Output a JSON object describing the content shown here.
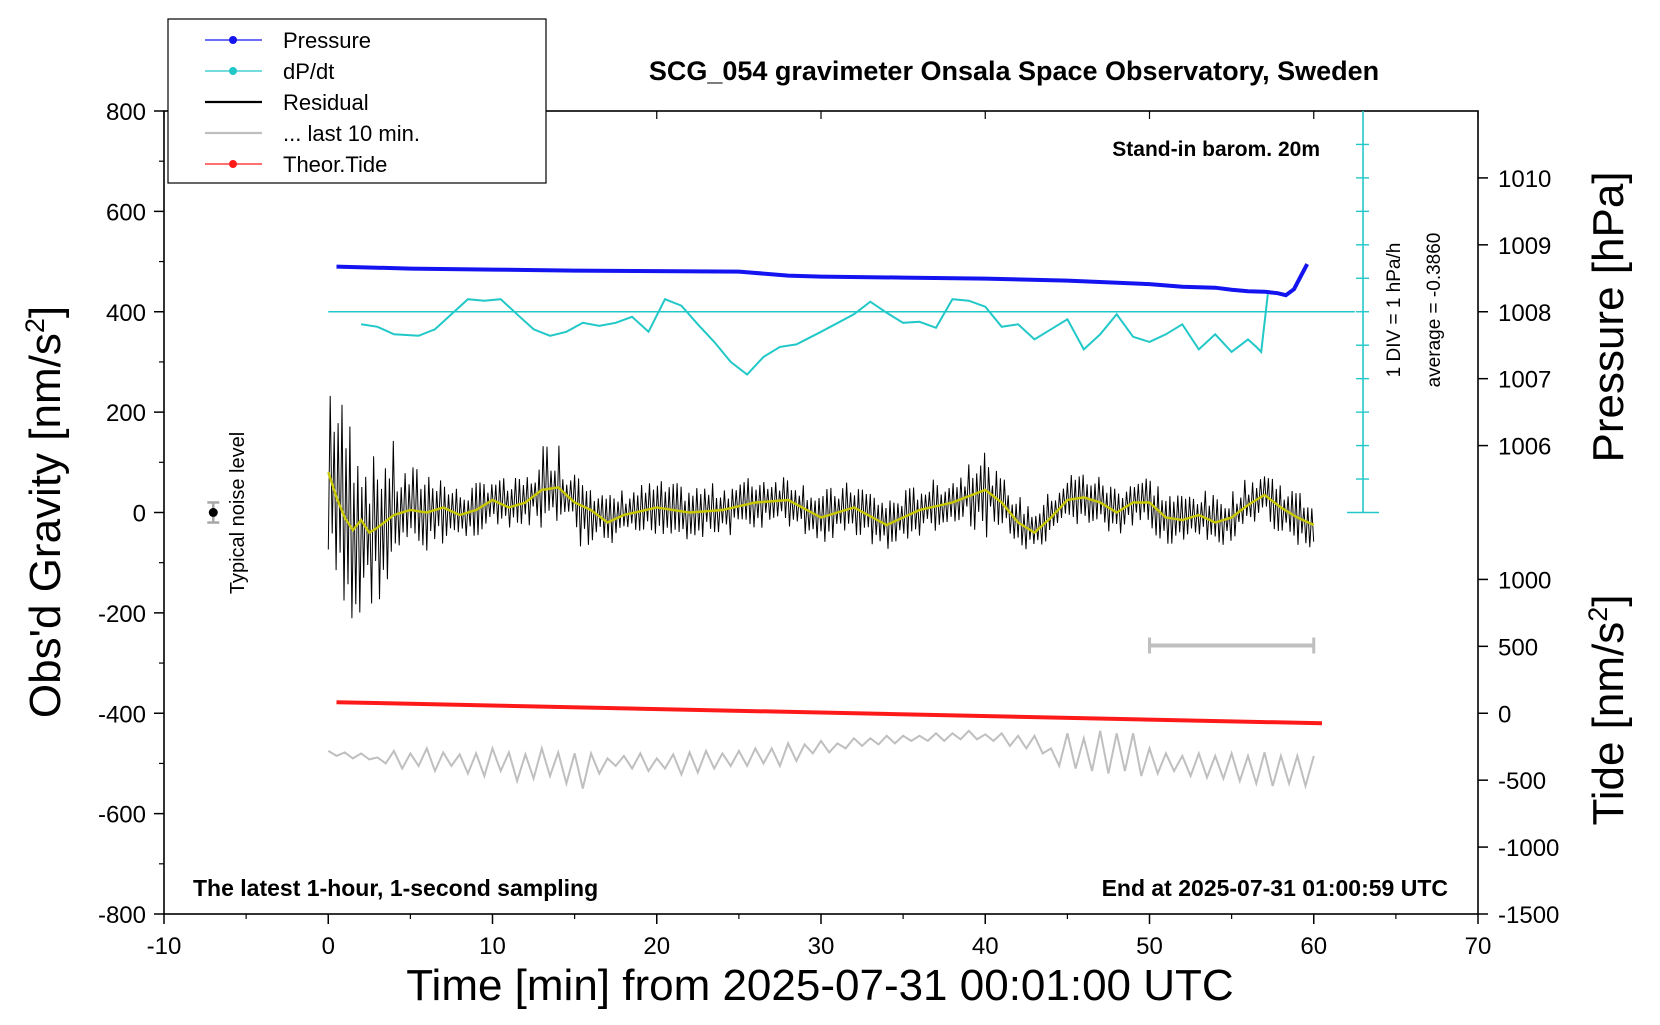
{
  "chart_data": {
    "type": "line",
    "title": "SCG_054 gravimeter Onsala Space Observatory, Sweden",
    "xlabel": "Time [min] from 2025-07-31 00:01:00 UTC",
    "ylabel_left": "Obs'd Gravity [nm/s",
    "ylabel_left_sup": "2",
    "ylabel_left_end": "]",
    "ylabel_pressure": "Pressure [hPa]",
    "ylabel_tide": "Tide [nm/s",
    "ylabel_tide_sup": "2",
    "ylabel_tide_end": "]",
    "xlim": [
      -10,
      70
    ],
    "ylim": [
      -800,
      800
    ],
    "x_ticks": [
      "-10",
      "0",
      "10",
      "20",
      "30",
      "40",
      "50",
      "60",
      "70"
    ],
    "y_ticks": [
      "-800",
      "-600",
      "-400",
      "-200",
      "0",
      "200",
      "400",
      "600",
      "800"
    ],
    "pressure_ticks": [
      "1006",
      "1007",
      "1008",
      "1009",
      "1010"
    ],
    "pressure_tick_values": [
      1006,
      1007,
      1008,
      1009,
      1010
    ],
    "pressure_axis": {
      "value_at_gravity_400": 1008,
      "hpa_per_100_nms2": 0.75
    },
    "tide_ticks": [
      "-1500",
      "-1000",
      "-500",
      "0",
      "500",
      "1000"
    ],
    "tide_tick_values": [
      -1500,
      -1000,
      -500,
      0,
      500,
      1000
    ],
    "tide_axis": {
      "value_at_gravity_minus_800": -1500,
      "value_at_gravity_minus_400": 0
    },
    "legend": {
      "position": "top-left",
      "entries": [
        {
          "label": "Pressure",
          "color": "#1414f0",
          "marker": "dot"
        },
        {
          "label": "dP/dt",
          "color": "#22c8c8",
          "marker": "dot"
        },
        {
          "label": "Residual",
          "color": "#000000",
          "marker": "none"
        },
        {
          "label": "... last 10 min.",
          "color": "#bfbfbf",
          "marker": "none"
        },
        {
          "label": "Theor.Tide",
          "color": "#ff1a1a",
          "marker": "dot"
        }
      ]
    },
    "annotations": {
      "barometer": "Stand-in barom. 20m",
      "div_label": "1 DIV = 1 hPa/h",
      "average_label": "average = -0.3860",
      "noise_label": "Typical noise level",
      "bottom_left": "The latest 1-hour, 1-second sampling",
      "bottom_right": "End at 2025-07-31 01:00:59 UTC"
    },
    "noise_bar": {
      "x": -7,
      "y": 0,
      "half_range": 20
    },
    "last10_bar": {
      "x_start": 50,
      "x_end": 60,
      "y": -265
    },
    "dpdt_reference": {
      "y": 400,
      "x_start": 0,
      "x_end": 62.5,
      "scale_x": 63,
      "scale_y_top": 800,
      "scale_y_bottom": 0
    },
    "series": [
      {
        "name": "Pressure",
        "color": "#1414f0",
        "x": [
          0.5,
          5,
          10,
          15,
          20,
          25,
          28,
          30,
          35,
          40,
          45,
          50,
          52,
          54,
          55,
          56,
          57,
          57.8,
          58.3,
          58.8,
          59.2,
          59.6
        ],
        "y": [
          490,
          486,
          484,
          482,
          481,
          480,
          472,
          470,
          468,
          466,
          462,
          455,
          450,
          448,
          444,
          441,
          440,
          437,
          433,
          445,
          470,
          495
        ]
      },
      {
        "name": "dP/dt",
        "color": "#22c8c8",
        "x": [
          2,
          3,
          4,
          5.5,
          6.5,
          7.5,
          8.5,
          9.5,
          10.5,
          11.5,
          12.5,
          13.5,
          14.5,
          15.5,
          16.5,
          17.5,
          18.5,
          19.5,
          20.5,
          21.5,
          22.5,
          23.5,
          24.5,
          25.5,
          26.5,
          27.5,
          28.5,
          30,
          32,
          33,
          34,
          35,
          36,
          37,
          38,
          39,
          40,
          41,
          42,
          43,
          44,
          45,
          46,
          47,
          48,
          49,
          50,
          51,
          52,
          53,
          54,
          55,
          56,
          56.5,
          56.8,
          57.2
        ],
        "y": [
          375,
          370,
          355,
          352,
          365,
          395,
          425,
          422,
          425,
          395,
          365,
          352,
          360,
          378,
          372,
          378,
          390,
          360,
          425,
          412,
          375,
          340,
          300,
          275,
          310,
          330,
          335,
          360,
          395,
          420,
          398,
          378,
          380,
          368,
          425,
          422,
          410,
          370,
          375,
          345,
          365,
          385,
          325,
          355,
          395,
          350,
          340,
          355,
          375,
          325,
          355,
          320,
          345,
          330,
          320,
          435
        ]
      },
      {
        "name": "Residual smoothed",
        "color": "#c8c800",
        "x": [
          0,
          0.5,
          1,
          1.5,
          2,
          2.5,
          3,
          4,
          5,
          6,
          7,
          8,
          9,
          10,
          11,
          12,
          13,
          14,
          15,
          16,
          17,
          18,
          20,
          22,
          24,
          26,
          28,
          30,
          32,
          34,
          36,
          38,
          40,
          41,
          42,
          43,
          44,
          45,
          46,
          47,
          48,
          49,
          50,
          51,
          52,
          53,
          54,
          55,
          56,
          57,
          58,
          59,
          60
        ],
        "y": [
          80,
          30,
          -10,
          -35,
          -15,
          -40,
          -30,
          -5,
          5,
          0,
          10,
          -5,
          5,
          25,
          10,
          20,
          45,
          50,
          20,
          5,
          -20,
          -5,
          10,
          0,
          5,
          20,
          25,
          -10,
          10,
          -25,
          5,
          20,
          45,
          20,
          -20,
          -40,
          -10,
          25,
          30,
          20,
          0,
          20,
          20,
          -10,
          -15,
          -5,
          -20,
          -10,
          15,
          35,
          10,
          -10,
          -25
        ]
      },
      {
        "name": "Theor.Tide",
        "color": "#ff1a1a",
        "x": [
          0.5,
          60.5
        ],
        "y": [
          -378,
          -420
        ]
      },
      {
        "name": "... last 10 min.",
        "color": "#bfbfbf",
        "x": [
          0,
          0.5,
          1,
          1.5,
          2,
          2.5,
          3,
          3.5,
          4,
          4.5,
          5,
          5.5,
          6,
          6.5,
          7,
          7.5,
          8,
          8.5,
          9,
          9.5,
          10,
          10.5,
          11,
          11.5,
          12,
          12.5,
          13,
          13.5,
          14,
          14.5,
          15,
          15.5,
          16,
          16.5,
          17,
          17.5,
          18,
          18.5,
          19,
          19.5,
          20,
          20.5,
          21,
          21.5,
          22,
          22.5,
          23,
          23.5,
          24,
          24.5,
          25,
          25.5,
          26,
          26.5,
          27,
          27.5,
          28,
          28.5,
          29,
          29.5,
          30,
          30.5,
          31,
          31.5,
          32,
          32.5,
          33,
          33.5,
          34,
          34.5,
          35,
          35.5,
          36,
          36.5,
          37,
          37.5,
          38,
          38.5,
          39,
          39.5,
          40,
          40.5,
          41,
          41.5,
          42,
          42.5,
          43,
          43.5,
          44,
          44.5,
          45,
          45.5,
          46,
          46.5,
          47,
          47.5,
          48,
          48.5,
          49,
          49.5,
          50,
          50.5,
          51,
          51.5,
          52,
          52.5,
          53,
          53.5,
          54,
          54.5,
          55,
          55.5,
          56,
          56.5,
          57,
          57.5,
          58,
          58.5,
          59,
          59.5,
          60
        ],
        "y": [
          -475,
          -485,
          -478,
          -490,
          -480,
          -492,
          -488,
          -500,
          -475,
          -510,
          -480,
          -505,
          -470,
          -515,
          -478,
          -505,
          -482,
          -520,
          -480,
          -525,
          -470,
          -515,
          -478,
          -535,
          -482,
          -530,
          -470,
          -525,
          -478,
          -540,
          -480,
          -550,
          -480,
          -520,
          -490,
          -505,
          -485,
          -510,
          -480,
          -515,
          -490,
          -510,
          -482,
          -522,
          -478,
          -518,
          -475,
          -510,
          -480,
          -505,
          -475,
          -505,
          -470,
          -500,
          -470,
          -505,
          -460,
          -495,
          -462,
          -480,
          -455,
          -478,
          -460,
          -470,
          -450,
          -465,
          -450,
          -462,
          -445,
          -460,
          -445,
          -455,
          -445,
          -455,
          -440,
          -455,
          -440,
          -452,
          -435,
          -452,
          -442,
          -455,
          -440,
          -465,
          -445,
          -470,
          -445,
          -480,
          -470,
          -505,
          -440,
          -510,
          -450,
          -515,
          -435,
          -520,
          -440,
          -515,
          -440,
          -525,
          -470,
          -520,
          -480,
          -515,
          -485,
          -525,
          -480,
          -528,
          -485,
          -530,
          -480,
          -535,
          -485,
          -540,
          -478,
          -545,
          -485,
          -540,
          -485,
          -545,
          -485
        ]
      },
      {
        "name": "Residual",
        "color": "#000000",
        "generator": {
          "x_start": 0,
          "x_end": 60,
          "step": 0.12
        }
      }
    ]
  }
}
